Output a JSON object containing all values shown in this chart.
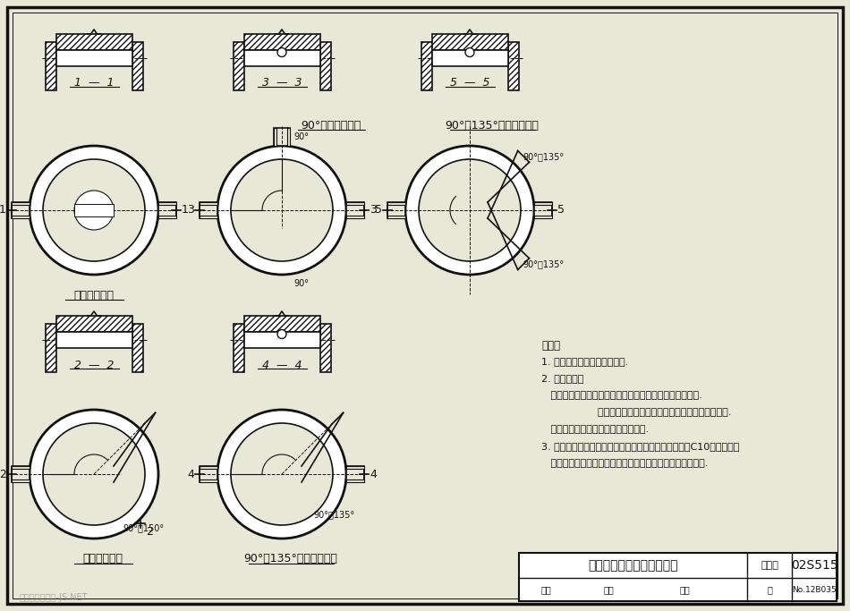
{
  "bg": "#e8e8d8",
  "lc": "#111111",
  "title": "圆形排水检查井流槽形式图",
  "fig_num": "02S515",
  "page": "No.12B035",
  "label1": "直线井平面图",
  "label2": "转弯井平面图",
  "label3": "90°三通井平面图",
  "label4": "90°～135°三通井平面图",
  "label5": "90°～135°四通井平面图",
  "s11": "1  —  1",
  "s22": "2  —  2",
  "s33": "3  —  3",
  "s44": "4  —  4",
  "s55": "5  —  5",
  "note0": "说明：",
  "note1": "1. 管道连接一般采用管顶平接.",
  "note2": "2. 流槽高度：",
  "note3": "   雨水检查井：相同直径的管道连接时，流槽顶与管中心平.",
  "note4": "                  不同直径的管道连接时，流槽顶一般与小管中心平.",
  "note5": "   污水检查井：流槽顶一般与管内顶平.",
  "note6": "3. 流槽材料：采用与井墙一次砌筑的砖砌流槽，如改用C10混凝土时，",
  "note7": "   浇筑前应先将检查井井基、井墙洗刷干净，以保证共同受力.",
  "angle_90_135": "90°～135°",
  "angle_90": "90°",
  "angle_90_150": "90°～150°",
  "watermark": "典尚建筑素材网-JS.NET"
}
